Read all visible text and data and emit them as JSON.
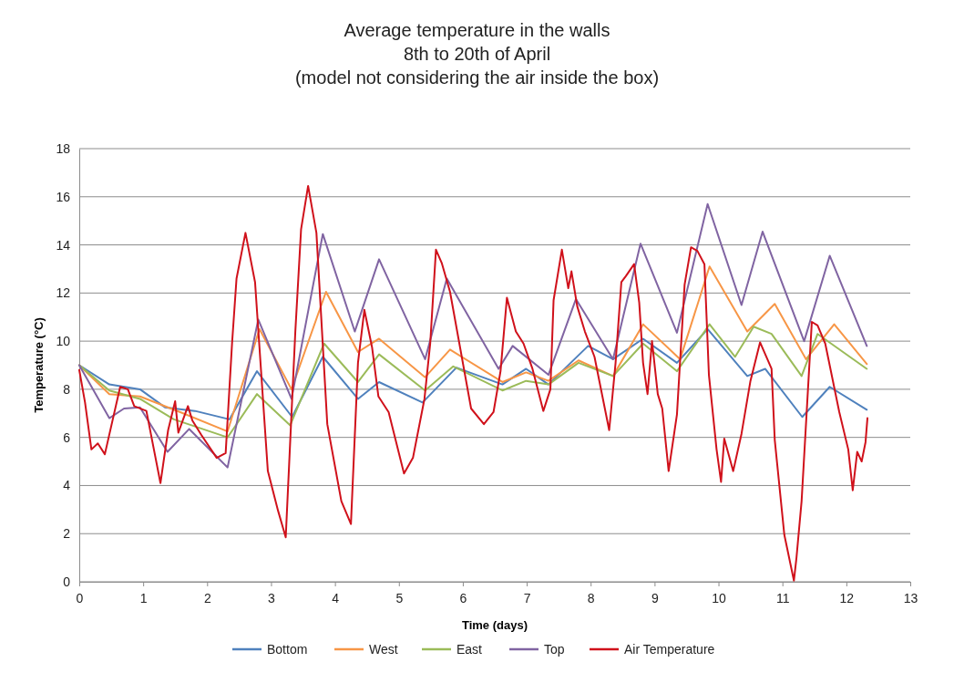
{
  "chart_data": {
    "type": "line",
    "title": "Average temperature in the walls\n8th to 20th of April\n(model not considering the air inside the box)",
    "xlabel": "Time (days)",
    "ylabel": "Temperature (°C)",
    "xlim": [
      0,
      13
    ],
    "xticks": [
      0,
      1,
      2,
      3,
      4,
      5,
      6,
      7,
      8,
      9,
      10,
      11,
      12,
      13
    ],
    "ylim": [
      0,
      18
    ],
    "yticks": [
      0,
      2,
      4,
      6,
      8,
      10,
      12,
      14,
      16,
      18
    ],
    "grid": "y",
    "legend": "bottom",
    "marker": "none",
    "line_style": "solid",
    "series": [
      {
        "name": "Bottom",
        "color": "#4f81bd",
        "x": [
          0,
          0.47,
          0.95,
          1.34,
          1.81,
          2.35,
          2.78,
          3.33,
          3.81,
          4.36,
          4.69,
          5.37,
          5.9,
          6.62,
          6.99,
          7.34,
          7.96,
          8.35,
          8.82,
          9.35,
          9.83,
          10.45,
          10.73,
          11.31,
          11.74,
          12.32
        ],
        "values": [
          9.0,
          8.2,
          8.0,
          7.25,
          7.1,
          6.75,
          8.75,
          6.85,
          9.35,
          7.6,
          8.3,
          7.45,
          8.9,
          8.2,
          8.85,
          8.2,
          9.8,
          9.25,
          10.1,
          9.1,
          10.5,
          8.55,
          8.85,
          6.85,
          8.1,
          7.15
        ]
      },
      {
        "name": "West",
        "color": "#f79646",
        "x": [
          0,
          0.47,
          0.95,
          1.58,
          2.32,
          2.82,
          3.32,
          3.86,
          4.36,
          4.69,
          5.41,
          5.8,
          6.62,
          6.99,
          7.34,
          7.81,
          8.35,
          8.82,
          9.4,
          9.86,
          10.45,
          10.88,
          11.37,
          11.81,
          12.32
        ],
        "values": [
          9.0,
          7.8,
          7.7,
          7.05,
          6.25,
          10.5,
          8.0,
          12.05,
          9.55,
          10.1,
          8.5,
          9.65,
          8.3,
          8.7,
          8.35,
          9.2,
          8.55,
          10.7,
          9.25,
          13.1,
          10.4,
          11.55,
          9.25,
          10.7,
          9.05
        ]
      },
      {
        "name": "East",
        "color": "#9bbb59",
        "x": [
          0,
          0.47,
          0.95,
          1.48,
          2.32,
          2.78,
          3.3,
          3.83,
          4.36,
          4.69,
          5.41,
          5.85,
          6.62,
          6.99,
          7.34,
          7.81,
          8.35,
          8.82,
          9.35,
          9.86,
          10.26,
          10.55,
          10.83,
          11.3,
          11.55,
          12.32
        ],
        "values": [
          9.0,
          7.95,
          7.6,
          6.75,
          6.0,
          7.8,
          6.5,
          9.9,
          8.3,
          9.45,
          7.95,
          8.95,
          7.95,
          8.35,
          8.2,
          9.1,
          8.55,
          9.9,
          8.75,
          10.7,
          9.35,
          10.6,
          10.3,
          8.55,
          10.3,
          8.85
        ]
      },
      {
        "name": "Top",
        "color": "#8064a2",
        "x": [
          0,
          0.47,
          0.7,
          0.95,
          1.38,
          1.72,
          2.32,
          2.8,
          3.32,
          3.81,
          4.31,
          4.69,
          5.41,
          5.75,
          6.56,
          6.78,
          7.34,
          7.77,
          8.35,
          8.78,
          9.35,
          9.83,
          10.36,
          10.69,
          11.34,
          11.74,
          12.32
        ],
        "values": [
          9.0,
          6.8,
          7.2,
          7.25,
          5.4,
          6.35,
          4.75,
          10.9,
          7.6,
          14.45,
          10.4,
          13.4,
          9.25,
          12.6,
          8.85,
          9.8,
          8.6,
          11.75,
          9.25,
          14.05,
          10.35,
          15.7,
          11.5,
          14.55,
          10.0,
          13.55,
          9.8
        ]
      },
      {
        "name": "Air Temperature",
        "color": "#d0111b",
        "x": [
          0,
          0.09,
          0.19,
          0.29,
          0.4,
          0.64,
          0.76,
          0.86,
          1.05,
          1.27,
          1.39,
          1.5,
          1.55,
          1.7,
          1.77,
          1.91,
          2.15,
          2.29,
          2.39,
          2.46,
          2.6,
          2.75,
          2.95,
          3.11,
          3.23,
          3.38,
          3.47,
          3.58,
          3.71,
          3.88,
          4.1,
          4.25,
          4.36,
          4.46,
          4.58,
          4.68,
          4.84,
          5.08,
          5.22,
          5.4,
          5.49,
          5.58,
          5.67,
          5.8,
          6.13,
          6.33,
          6.48,
          6.59,
          6.69,
          6.83,
          6.95,
          7.09,
          7.26,
          7.37,
          7.42,
          7.55,
          7.65,
          7.7,
          7.79,
          7.91,
          8.06,
          8.29,
          8.39,
          8.48,
          8.55,
          8.68,
          8.76,
          8.82,
          8.89,
          8.96,
          9.05,
          9.12,
          9.22,
          9.35,
          9.47,
          9.57,
          9.67,
          9.78,
          9.85,
          9.97,
          10.04,
          10.09,
          10.23,
          10.36,
          10.5,
          10.65,
          10.83,
          10.88,
          11.03,
          11.18,
          11.22,
          11.3,
          11.46,
          11.55,
          11.67,
          11.89,
          12.03,
          12.1,
          12.17,
          12.24,
          12.3,
          12.33
        ],
        "values": [
          8.8,
          7.45,
          5.5,
          5.75,
          5.3,
          8.1,
          8.0,
          7.3,
          7.1,
          4.1,
          6.3,
          7.5,
          6.2,
          7.3,
          6.7,
          6.1,
          5.15,
          5.35,
          9.9,
          12.6,
          14.5,
          12.45,
          4.6,
          2.95,
          1.85,
          10.4,
          14.65,
          16.45,
          14.5,
          6.55,
          3.35,
          2.4,
          9.1,
          11.3,
          9.75,
          7.7,
          7.05,
          4.5,
          5.15,
          7.6,
          9.9,
          13.8,
          13.25,
          12.05,
          7.2,
          6.55,
          7.05,
          8.75,
          11.8,
          10.4,
          9.9,
          8.85,
          7.1,
          8.0,
          11.7,
          13.8,
          12.2,
          12.9,
          11.45,
          10.4,
          9.35,
          6.3,
          9.1,
          12.45,
          12.7,
          13.2,
          11.6,
          9.1,
          7.8,
          10.0,
          7.8,
          7.2,
          4.6,
          6.95,
          12.35,
          13.9,
          13.75,
          13.2,
          8.6,
          5.5,
          4.15,
          5.95,
          4.6,
          6.15,
          8.35,
          9.95,
          8.85,
          5.9,
          1.95,
          0.05,
          1.0,
          3.35,
          10.8,
          10.65,
          9.9,
          7.05,
          5.5,
          3.8,
          5.4,
          5.0,
          5.8,
          6.8
        ]
      }
    ]
  }
}
